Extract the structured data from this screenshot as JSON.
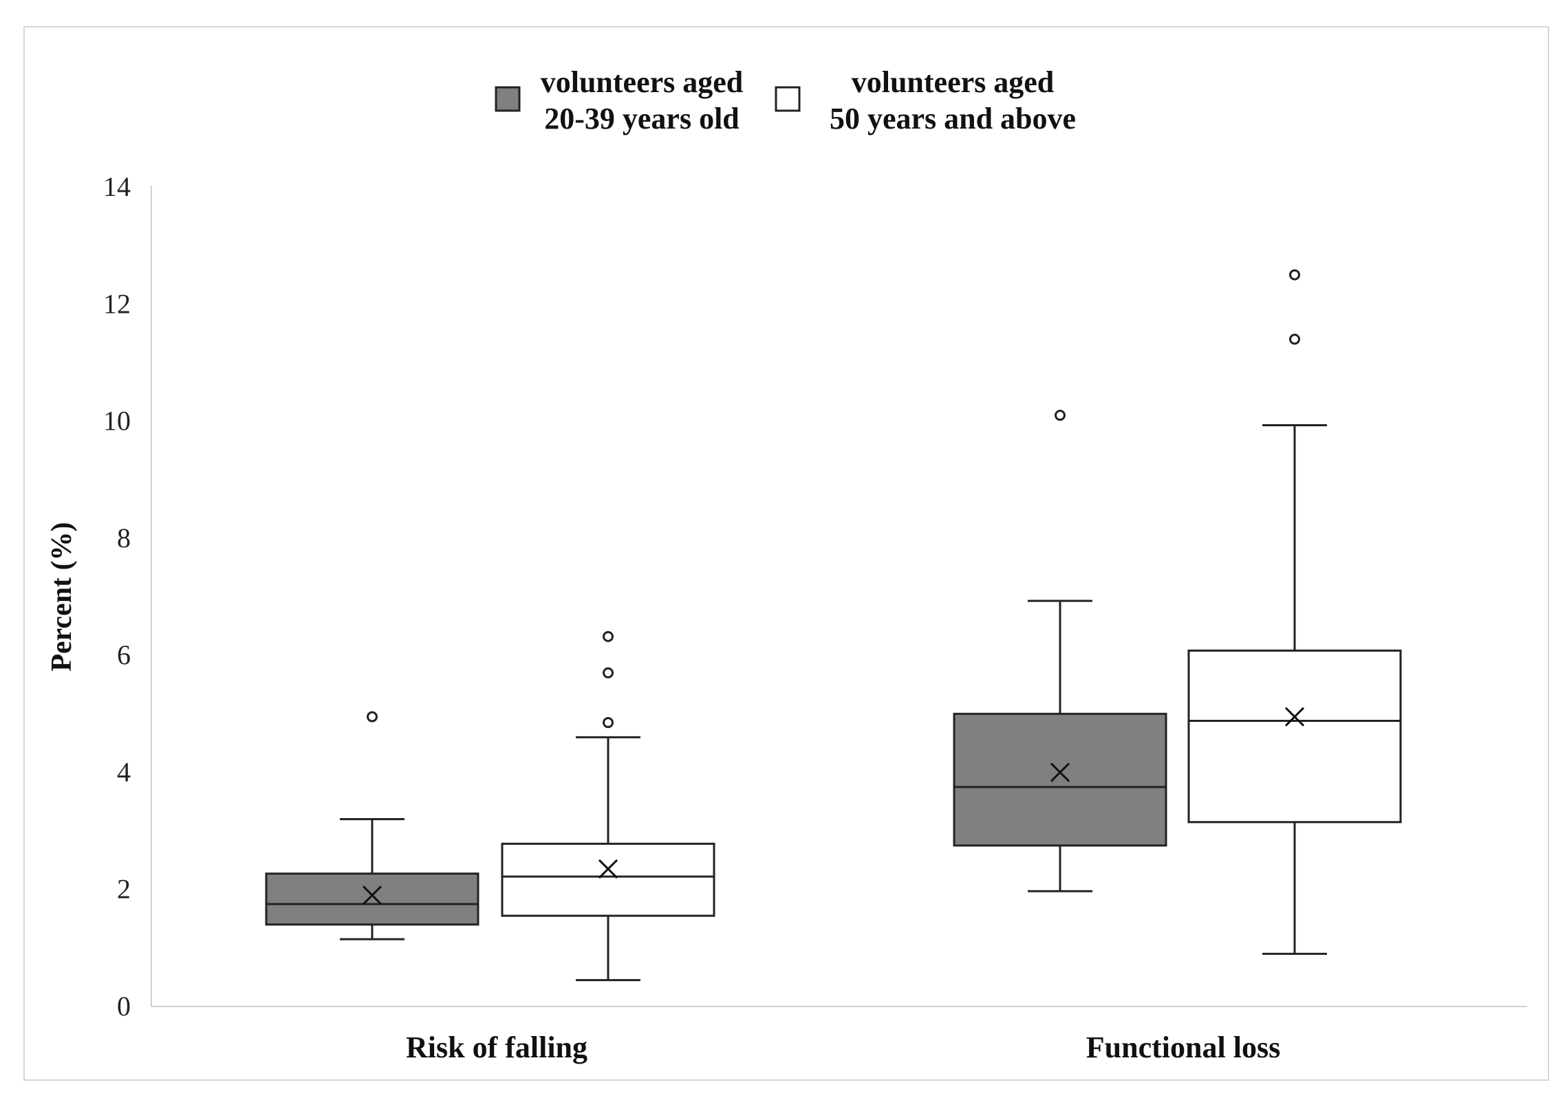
{
  "chart_data": {
    "type": "box",
    "ylabel": "Percent (%)",
    "xlabel": "",
    "ylim": [
      0,
      14
    ],
    "yticks": [
      0,
      2,
      4,
      6,
      8,
      10,
      12,
      14
    ],
    "categories": [
      "Risk of falling",
      "Functional loss"
    ],
    "legend_position": "top-center",
    "series": [
      {
        "name_lines": [
          "volunteers aged",
          "20-39 years old"
        ],
        "color": "#808080",
        "boxes": [
          {
            "whisker_low": 1.15,
            "q1": 1.4,
            "median": 1.75,
            "q3": 2.27,
            "whisker_high": 3.2,
            "mean": 1.9,
            "outliers": [
              4.95
            ]
          },
          {
            "whisker_low": 1.97,
            "q1": 2.75,
            "median": 3.75,
            "q3": 5.0,
            "whisker_high": 6.93,
            "mean": 4.0,
            "outliers": [
              10.1
            ]
          }
        ]
      },
      {
        "name_lines": [
          "volunteers aged",
          "50 years and above"
        ],
        "color": "#ffffff",
        "boxes": [
          {
            "whisker_low": 0.45,
            "q1": 1.55,
            "median": 2.22,
            "q3": 2.78,
            "whisker_high": 4.6,
            "mean": 2.35,
            "outliers": [
              4.85,
              5.7,
              6.32
            ]
          },
          {
            "whisker_low": 0.9,
            "q1": 3.15,
            "median": 4.88,
            "q3": 6.08,
            "whisker_high": 9.93,
            "mean": 4.95,
            "outliers": [
              11.4,
              12.5
            ]
          }
        ]
      }
    ]
  }
}
